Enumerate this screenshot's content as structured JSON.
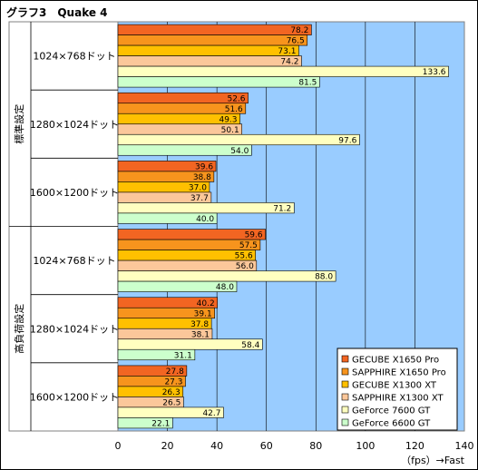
{
  "chart_data": {
    "type": "bar",
    "orientation": "horizontal",
    "title": "グラフ3　Quake 4",
    "sections": [
      "標準設定",
      "高負荷設定"
    ],
    "categories": [
      "1024×768ドット",
      "1280×1024ドット",
      "1600×1200ドット",
      "1024×768ドット",
      "1280×1024ドット",
      "1600×1200ドット"
    ],
    "series": [
      {
        "name": "GECUBE X1650 Pro",
        "color": "#f26522",
        "values": [
          78.2,
          52.6,
          39.6,
          59.6,
          40.2,
          27.8
        ]
      },
      {
        "name": "SAPPHIRE X1650 Pro",
        "color": "#f7941d",
        "values": [
          76.5,
          51.6,
          38.8,
          57.5,
          39.1,
          27.3
        ]
      },
      {
        "name": "GECUBE X1300 XT",
        "color": "#ffc000",
        "values": [
          73.1,
          49.3,
          37.0,
          55.6,
          37.8,
          26.3
        ]
      },
      {
        "name": "SAPPHIRE X1300 XT",
        "color": "#fbc79a",
        "values": [
          74.2,
          50.1,
          37.7,
          56.0,
          38.1,
          26.5
        ]
      },
      {
        "name": "GeForce 7600 GT",
        "color": "#ffffc0",
        "values": [
          133.6,
          97.6,
          71.2,
          88.0,
          58.4,
          42.7
        ]
      },
      {
        "name": "GeForce 6600 GT",
        "color": "#ccffcc",
        "values": [
          81.5,
          54.0,
          40.0,
          48.0,
          31.1,
          22.1
        ]
      }
    ],
    "xlim": [
      0,
      140
    ],
    "xticks": [
      0,
      20,
      40,
      60,
      80,
      100,
      120,
      140
    ],
    "xlabel": "（fps）→Fast",
    "plot_background": "#99ccff",
    "grid": true,
    "legend": "bottom-right"
  }
}
